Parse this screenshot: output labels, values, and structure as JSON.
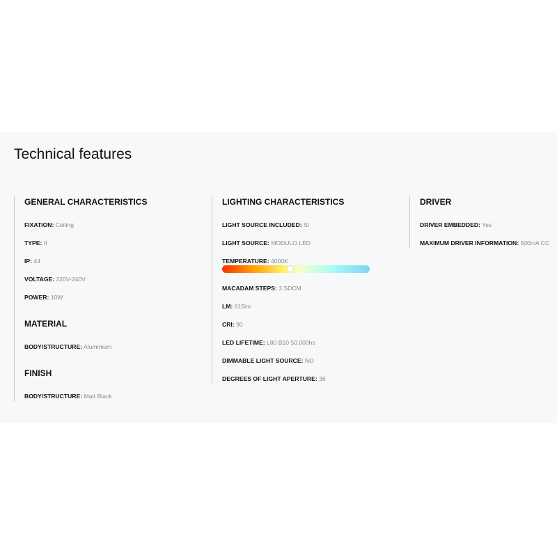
{
  "title": "Technical features",
  "columns": [
    {
      "groups": [
        {
          "heading": "GENERAL CHARACTERISTICS",
          "items": [
            {
              "label": "FIXATION:",
              "value": "Ceiling"
            },
            {
              "label": "TYPE:",
              "value": "II"
            },
            {
              "label": "IP:",
              "value": "44"
            },
            {
              "label": "VOLTAGE:",
              "value": "220V-240V"
            },
            {
              "label": "POWER:",
              "value": "10W"
            }
          ]
        },
        {
          "heading": "MATERIAL",
          "items": [
            {
              "label": "BODY/STRUCTURE:",
              "value": "Aluminium"
            }
          ]
        },
        {
          "heading": "FINISH",
          "items": [
            {
              "label": "BODY/STRUCTURE:",
              "value": "Matt Black"
            }
          ]
        }
      ]
    },
    {
      "groups": [
        {
          "heading": "LIGHTING CHARACTERISTICS",
          "items": [
            {
              "label": "LIGHT SOURCE INCLUDED:",
              "value": "SI"
            },
            {
              "label": "LIGHT SOURCE:",
              "value": "MODULO LED"
            },
            {
              "label": "TEMPERATURE:",
              "value": "4000K"
            },
            {
              "label": "MACADAM STEPS:",
              "value": "3 SDCM"
            },
            {
              "label": "LM:",
              "value": "615lm"
            },
            {
              "label": "CRI:",
              "value": "90"
            },
            {
              "label": "LED LIFETIME:",
              "value": "L80 B10 50.000hs"
            },
            {
              "label": "DIMMABLE LIGHT SOURCE:",
              "value": "NO"
            },
            {
              "label": "DEGREES OF LIGHT APERTURE:",
              "value": "36"
            }
          ]
        }
      ]
    },
    {
      "groups": [
        {
          "heading": "DRIVER",
          "items": [
            {
              "label": "DRIVER EMBEDDED:",
              "value": "Yes"
            },
            {
              "label": "MAXIMUM DRIVER INFORMATION:",
              "value": "500mA CC"
            }
          ]
        }
      ]
    }
  ],
  "temperature_scale": {
    "position_fraction": 0.46,
    "colors": [
      "#ff3000",
      "#ff9a00",
      "#fff36a",
      "#a8fbf4",
      "#7fd3f5"
    ]
  }
}
